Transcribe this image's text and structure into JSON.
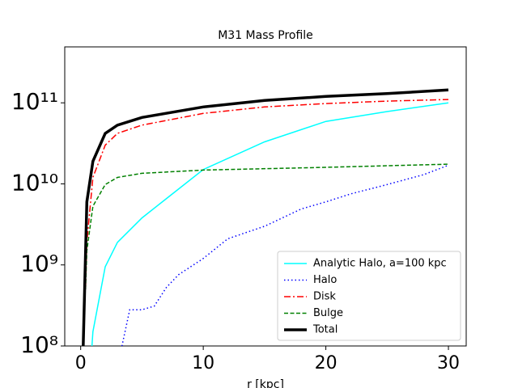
{
  "chart_data": {
    "type": "line",
    "title": "M31 Mass Profile",
    "x_label": "r [kpc]",
    "log_y": true,
    "xlim": [
      -1.3,
      31.45
    ],
    "ylim": [
      100000000,
      490000000000
    ],
    "xticks": [
      0,
      10,
      20,
      30
    ],
    "yticks": [
      {
        "value": 100000000,
        "label": "10⁸"
      },
      {
        "value": 1000000000,
        "label": "10⁹"
      },
      {
        "value": 10000000000,
        "label": "10¹⁰"
      },
      {
        "value": 100000000000,
        "label": "10¹¹"
      }
    ],
    "legend": "lower right",
    "series": [
      {
        "name": "Analytic Halo, a=100 kpc",
        "color": "#00ffff",
        "dash": "",
        "width": 1.5,
        "x": [
          0.9,
          1,
          2,
          3,
          5,
          7,
          10,
          15,
          20,
          25,
          30
        ],
        "values": [
          90000000,
          150000000,
          950000000,
          1900000000,
          3800000000,
          6600000000,
          15000000000,
          33000000000,
          59000000000,
          78000000000,
          100000000000
        ]
      },
      {
        "name": "Halo",
        "color": "#0000ff",
        "dash": "1.5 3",
        "width": 1.5,
        "x": [
          3.3,
          4,
          5,
          6,
          7,
          8,
          10,
          12,
          15,
          18,
          20,
          22,
          25,
          28,
          30
        ],
        "values": [
          90000000,
          280000000,
          280000000,
          310000000,
          530000000,
          760000000,
          1200000000,
          2100000000,
          3000000000,
          4900000000,
          6000000000,
          7500000000,
          9800000000,
          13000000000,
          17000000000
        ]
      },
      {
        "name": "Disk",
        "color": "#ff0000",
        "dash": "8 3 2 3",
        "width": 1.5,
        "x": [
          0.4,
          0.5,
          1,
          2,
          3,
          5,
          10,
          15,
          20,
          25,
          30
        ],
        "values": [
          500000000,
          1900000000,
          12000000000,
          30000000000,
          42000000000,
          53000000000,
          74000000000,
          89000000000,
          98000000000,
          105000000000,
          110000000000
        ]
      },
      {
        "name": "Bulge",
        "color": "#008000",
        "dash": "5 2.5",
        "width": 1.5,
        "x": [
          0.4,
          0.5,
          1,
          2,
          3,
          5,
          10,
          20,
          30
        ],
        "values": [
          500000000,
          1500000000,
          5300000000,
          9800000000,
          12000000000,
          13500000000,
          14800000000,
          16000000000,
          17500000000
        ]
      },
      {
        "name": "Total",
        "color": "#000000",
        "dash": "",
        "width": 3.5,
        "x": [
          0.2,
          0.5,
          1,
          2,
          3,
          5,
          10,
          15,
          20,
          25,
          30
        ],
        "values": [
          90000000,
          6000000000,
          19000000000,
          42000000000,
          53000000000,
          66000000000,
          89000000000,
          107000000000,
          120000000000,
          130000000000,
          144000000000
        ]
      }
    ]
  }
}
